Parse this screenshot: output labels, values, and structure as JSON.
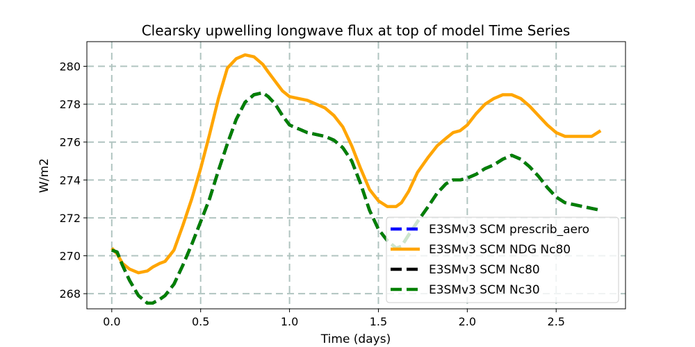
{
  "chart_data": {
    "type": "line",
    "title": "Clearsky upwelling longwave flux at top of model Time Series",
    "xlabel": "Time (days)",
    "ylabel": "W/m2",
    "xlim": [
      -0.14,
      2.89
    ],
    "ylim": [
      267.2,
      281.3
    ],
    "xticks": [
      0.0,
      0.5,
      1.0,
      1.5,
      2.0,
      2.5
    ],
    "xtick_labels": [
      "0.0",
      "0.5",
      "1.0",
      "1.5",
      "2.0",
      "2.5"
    ],
    "yticks": [
      268,
      270,
      272,
      274,
      276,
      278,
      280
    ],
    "ytick_labels": [
      "268",
      "270",
      "272",
      "274",
      "276",
      "278",
      "280"
    ],
    "grid": true,
    "legend_position": "bottom-right",
    "series": [
      {
        "name": "E3SMv3 SCM prescrib_aero",
        "color": "#0000ff",
        "dash": "dashed",
        "x": [
          0.0,
          0.03,
          0.06,
          0.1,
          0.15,
          0.2,
          0.23,
          0.27,
          0.3,
          0.35,
          0.4,
          0.45,
          0.5,
          0.55,
          0.6,
          0.65,
          0.7,
          0.75,
          0.8,
          0.85,
          0.88,
          0.92,
          0.96,
          1.0,
          1.05,
          1.1,
          1.15,
          1.2,
          1.25,
          1.3,
          1.35,
          1.4,
          1.45,
          1.5,
          1.55,
          1.6,
          1.63,
          1.67,
          1.72,
          1.78,
          1.83,
          1.88,
          1.92,
          1.96,
          2.0,
          2.05,
          2.1,
          2.15,
          2.2,
          2.25,
          2.3,
          2.35,
          2.4,
          2.45,
          2.5,
          2.55,
          2.6,
          2.65,
          2.7,
          2.75
        ],
        "values": [
          270.3,
          270.2,
          269.5,
          268.7,
          267.9,
          267.5,
          267.5,
          267.7,
          267.9,
          268.5,
          269.5,
          270.6,
          271.8,
          273.0,
          274.5,
          275.9,
          277.2,
          278.1,
          278.5,
          278.6,
          278.4,
          278.0,
          277.4,
          276.9,
          276.7,
          276.5,
          276.4,
          276.3,
          276.1,
          275.7,
          275.0,
          273.8,
          272.4,
          271.4,
          270.8,
          270.4,
          270.5,
          271.1,
          271.8,
          272.6,
          273.3,
          273.8,
          274.0,
          274.0,
          274.1,
          274.3,
          274.6,
          274.8,
          275.1,
          275.3,
          275.1,
          274.7,
          274.2,
          273.6,
          273.1,
          272.8,
          272.7,
          272.6,
          272.5,
          272.4
        ]
      },
      {
        "name": "E3SMv3 SCM NDG Nc80",
        "color": "#ffa500",
        "dash": "solid",
        "x": [
          0.0,
          0.03,
          0.06,
          0.1,
          0.15,
          0.2,
          0.23,
          0.27,
          0.3,
          0.35,
          0.4,
          0.45,
          0.5,
          0.55,
          0.6,
          0.65,
          0.7,
          0.75,
          0.8,
          0.85,
          0.88,
          0.92,
          0.96,
          1.0,
          1.05,
          1.1,
          1.15,
          1.2,
          1.25,
          1.3,
          1.35,
          1.4,
          1.45,
          1.5,
          1.55,
          1.6,
          1.63,
          1.67,
          1.72,
          1.78,
          1.83,
          1.88,
          1.92,
          1.96,
          2.0,
          2.05,
          2.1,
          2.15,
          2.2,
          2.25,
          2.3,
          2.35,
          2.4,
          2.45,
          2.5,
          2.55,
          2.6,
          2.65,
          2.7,
          2.75
        ],
        "values": [
          270.4,
          270.1,
          269.6,
          269.3,
          269.1,
          269.2,
          269.4,
          269.6,
          269.7,
          270.3,
          271.6,
          273.0,
          274.6,
          276.4,
          278.3,
          279.9,
          280.4,
          280.6,
          280.5,
          280.1,
          279.7,
          279.2,
          278.7,
          278.4,
          278.3,
          278.2,
          278.0,
          277.8,
          277.4,
          276.8,
          275.8,
          274.6,
          273.5,
          272.9,
          272.6,
          272.6,
          272.8,
          273.4,
          274.4,
          275.2,
          275.8,
          276.2,
          276.5,
          276.6,
          276.9,
          277.5,
          278.0,
          278.3,
          278.5,
          278.5,
          278.3,
          277.9,
          277.4,
          276.9,
          276.5,
          276.3,
          276.3,
          276.3,
          276.3,
          276.6
        ]
      },
      {
        "name": "E3SMv3 SCM Nc80",
        "color": "#000000",
        "dash": "dashed",
        "x": [
          0.0,
          0.03,
          0.06,
          0.1,
          0.15,
          0.2,
          0.23,
          0.27,
          0.3,
          0.35,
          0.4,
          0.45,
          0.5,
          0.55,
          0.6,
          0.65,
          0.7,
          0.75,
          0.8,
          0.85,
          0.88,
          0.92,
          0.96,
          1.0,
          1.05,
          1.1,
          1.15,
          1.2,
          1.25,
          1.3,
          1.35,
          1.4,
          1.45,
          1.5,
          1.55,
          1.6,
          1.63,
          1.67,
          1.72,
          1.78,
          1.83,
          1.88,
          1.92,
          1.96,
          2.0,
          2.05,
          2.1,
          2.15,
          2.2,
          2.25,
          2.3,
          2.35,
          2.4,
          2.45,
          2.5,
          2.55,
          2.6,
          2.65,
          2.7,
          2.75
        ],
        "values": [
          270.3,
          270.2,
          269.5,
          268.7,
          267.9,
          267.5,
          267.5,
          267.7,
          267.9,
          268.5,
          269.5,
          270.6,
          271.8,
          273.0,
          274.5,
          275.9,
          277.2,
          278.1,
          278.5,
          278.6,
          278.4,
          278.0,
          277.4,
          276.9,
          276.7,
          276.5,
          276.4,
          276.3,
          276.1,
          275.7,
          275.0,
          273.8,
          272.4,
          271.4,
          270.8,
          270.4,
          270.5,
          271.1,
          271.8,
          272.6,
          273.3,
          273.8,
          274.0,
          274.0,
          274.1,
          274.3,
          274.6,
          274.8,
          275.1,
          275.3,
          275.1,
          274.7,
          274.2,
          273.6,
          273.1,
          272.8,
          272.7,
          272.6,
          272.5,
          272.4
        ]
      },
      {
        "name": "E3SMv3 SCM Nc30",
        "color": "#008000",
        "dash": "dashed",
        "x": [
          0.0,
          0.03,
          0.06,
          0.1,
          0.15,
          0.2,
          0.23,
          0.27,
          0.3,
          0.35,
          0.4,
          0.45,
          0.5,
          0.55,
          0.6,
          0.65,
          0.7,
          0.75,
          0.8,
          0.85,
          0.88,
          0.92,
          0.96,
          1.0,
          1.05,
          1.1,
          1.15,
          1.2,
          1.25,
          1.3,
          1.35,
          1.4,
          1.45,
          1.5,
          1.55,
          1.6,
          1.63,
          1.67,
          1.72,
          1.78,
          1.83,
          1.88,
          1.92,
          1.96,
          2.0,
          2.05,
          2.1,
          2.15,
          2.2,
          2.25,
          2.3,
          2.35,
          2.4,
          2.45,
          2.5,
          2.55,
          2.6,
          2.65,
          2.7,
          2.75
        ],
        "values": [
          270.3,
          270.2,
          269.5,
          268.7,
          267.9,
          267.5,
          267.5,
          267.7,
          267.9,
          268.5,
          269.5,
          270.6,
          271.8,
          273.0,
          274.5,
          275.9,
          277.2,
          278.1,
          278.5,
          278.6,
          278.4,
          278.0,
          277.4,
          276.9,
          276.7,
          276.5,
          276.4,
          276.3,
          276.1,
          275.7,
          275.0,
          273.8,
          272.4,
          271.4,
          270.8,
          270.4,
          270.5,
          271.1,
          271.8,
          272.6,
          273.3,
          273.8,
          274.0,
          274.0,
          274.1,
          274.3,
          274.6,
          274.8,
          275.1,
          275.3,
          275.1,
          274.7,
          274.2,
          273.6,
          273.1,
          272.8,
          272.7,
          272.6,
          272.5,
          272.4
        ]
      }
    ]
  }
}
